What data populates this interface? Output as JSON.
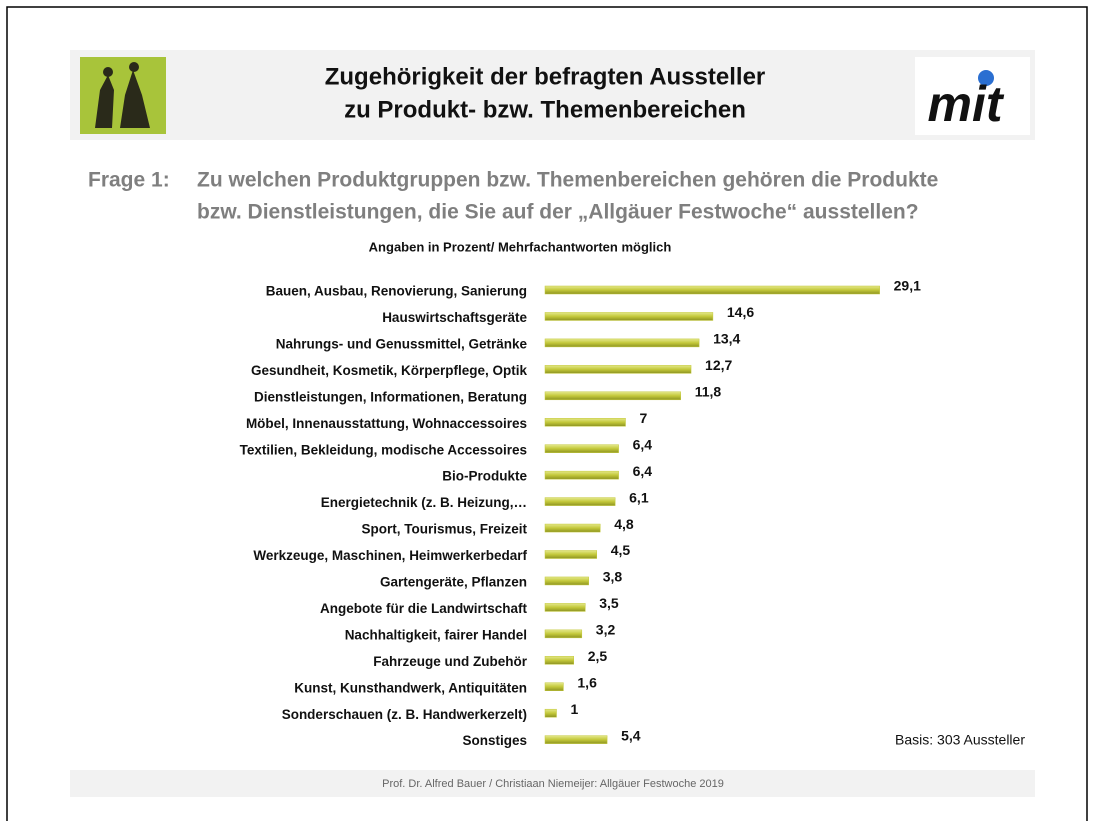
{
  "chart_data": {
    "type": "bar",
    "title": [
      "Zugehörigkeit der befragten Aussteller",
      "zu Produkt- bzw. Themenbereichen"
    ],
    "logo_text": "mit",
    "question_label": "Frage 1:",
    "question": [
      "Zu welchen Produktgruppen bzw. Themenbereichen gehören die Produkte",
      "bzw. Dienstleistungen, die Sie auf der „Allgäuer Festwoche“ ausstellen?"
    ],
    "subtitle": "Angaben in Prozent/ Mehrfachantworten möglich",
    "categories": [
      "Bauen, Ausbau, Renovierung, Sanierung",
      "Hauswirtschaftsgeräte",
      "Nahrungs- und Genussmittel, Getränke",
      "Gesundheit, Kosmetik, Körperpflege, Optik",
      "Dienstleistungen, Informationen, Beratung",
      "Möbel, Innenausstattung, Wohnaccessoires",
      "Textilien, Bekleidung, modische Accessoires",
      "Bio-Produkte",
      "Energietechnik (z. B. Heizung,…",
      "Sport, Tourismus, Freizeit",
      "Werkzeuge, Maschinen, Heimwerkerbedarf",
      "Gartengeräte, Pflanzen",
      "Angebote für die Landwirtschaft",
      "Nachhaltigkeit, fairer Handel",
      "Fahrzeuge und Zubehör",
      "Kunst, Kunsthandwerk, Antiquitäten",
      "Sonderschauen (z. B. Handwerkerzelt)",
      "Sonstiges"
    ],
    "values": [
      29.1,
      14.6,
      13.4,
      12.7,
      11.8,
      7,
      6.4,
      6.4,
      6.1,
      4.8,
      4.5,
      3.8,
      3.5,
      3.2,
      2.5,
      1.6,
      1,
      5.4
    ],
    "value_labels": [
      "29,1",
      "14,6",
      "13,4",
      "12,7",
      "11,8",
      "7",
      "6,4",
      "6,4",
      "6,1",
      "4,8",
      "4,5",
      "3,8",
      "3,5",
      "3,2",
      "2,5",
      "1,6",
      "1",
      "5,4"
    ],
    "color": "#c3c83a",
    "note": "Basis: 303 Aussteller",
    "footer": "Prof. Dr. Alfred Bauer  / Christiaan Niemeijer:  Allgäuer Festwoche 2019"
  }
}
